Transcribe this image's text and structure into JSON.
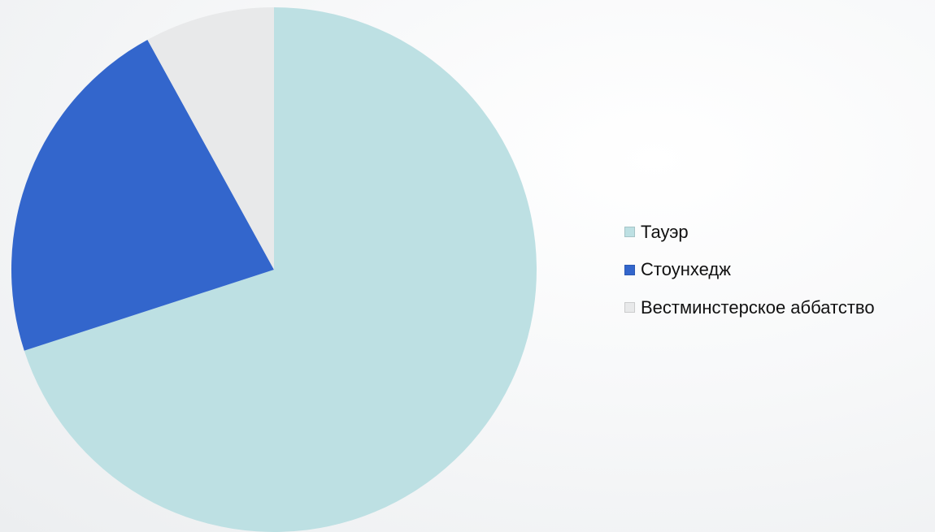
{
  "chart_data": {
    "type": "pie",
    "title": "",
    "legend_position": "right",
    "series": [
      {
        "name": "Тауэр",
        "value": 70,
        "color": "#bde0e3"
      },
      {
        "name": "Стоунхедж",
        "value": 22,
        "color": "#3366cc"
      },
      {
        "name": "Вестминстерское аббатство",
        "value": 8,
        "color": "#e8e9ea"
      }
    ]
  }
}
